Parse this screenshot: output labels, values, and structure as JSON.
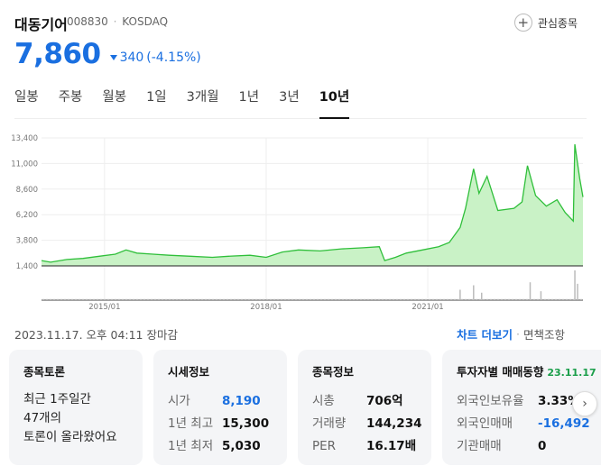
{
  "stock": {
    "name": "대동기어",
    "code": "008830",
    "market": "KOSDAQ",
    "fav_label": "관심종목",
    "price": "7,860",
    "change_value": "340",
    "change_pct": "(-4.15%)",
    "change_color": "#1a6fe0"
  },
  "tabs": [
    "일봉",
    "주봉",
    "월봉",
    "1일",
    "3개월",
    "1년",
    "3년",
    "10년"
  ],
  "active_tab": "10년",
  "timestamp": "2023.11.17. 오후 04:11 장마감",
  "links": {
    "chart_more": "차트 더보기",
    "exempt": "면책조항"
  },
  "chart_data": {
    "type": "area",
    "line_color": "#2fbf3a",
    "fill_color": "#c9f2c6",
    "y_ticks": [
      "13,400",
      "11,000",
      "8,600",
      "6,200",
      "3,800",
      "1,400"
    ],
    "y_tick_values": [
      13400,
      11000,
      8600,
      6200,
      3800,
      1400
    ],
    "ylim": [
      1400,
      13400
    ],
    "x_ticks": [
      "2015/01",
      "2018/01",
      "2021/01"
    ],
    "x_tick_years": [
      2015.0,
      2018.0,
      2021.0
    ],
    "xlim": [
      2013.83,
      2023.88
    ],
    "points": [
      [
        2013.83,
        1900
      ],
      [
        2014.0,
        1750
      ],
      [
        2014.3,
        2000
      ],
      [
        2014.6,
        2100
      ],
      [
        2014.9,
        2300
      ],
      [
        2015.2,
        2500
      ],
      [
        2015.4,
        2900
      ],
      [
        2015.6,
        2600
      ],
      [
        2015.9,
        2500
      ],
      [
        2016.2,
        2400
      ],
      [
        2016.6,
        2300
      ],
      [
        2017.0,
        2200
      ],
      [
        2017.3,
        2300
      ],
      [
        2017.7,
        2400
      ],
      [
        2018.0,
        2200
      ],
      [
        2018.3,
        2700
      ],
      [
        2018.6,
        2900
      ],
      [
        2019.0,
        2800
      ],
      [
        2019.4,
        3000
      ],
      [
        2019.8,
        3100
      ],
      [
        2020.1,
        3200
      ],
      [
        2020.2,
        1900
      ],
      [
        2020.4,
        2200
      ],
      [
        2020.6,
        2600
      ],
      [
        2020.9,
        2900
      ],
      [
        2021.2,
        3200
      ],
      [
        2021.4,
        3600
      ],
      [
        2021.6,
        5000
      ],
      [
        2021.7,
        6800
      ],
      [
        2021.85,
        10500
      ],
      [
        2021.95,
        8200
      ],
      [
        2022.1,
        9800
      ],
      [
        2022.3,
        6600
      ],
      [
        2022.6,
        6800
      ],
      [
        2022.75,
        7400
      ],
      [
        2022.85,
        10800
      ],
      [
        2023.0,
        8000
      ],
      [
        2023.2,
        7000
      ],
      [
        2023.4,
        7600
      ],
      [
        2023.55,
        6400
      ],
      [
        2023.7,
        5600
      ],
      [
        2023.73,
        12800
      ],
      [
        2023.82,
        9600
      ],
      [
        2023.88,
        7860
      ]
    ],
    "volume_spikes": [
      [
        2021.6,
        0.35
      ],
      [
        2021.85,
        0.5
      ],
      [
        2022.0,
        0.25
      ],
      [
        2022.9,
        0.6
      ],
      [
        2023.1,
        0.3
      ],
      [
        2023.73,
        1.0
      ],
      [
        2023.78,
        0.55
      ]
    ]
  },
  "cards": {
    "discussion": {
      "title": "종목토론",
      "lines": [
        "최근 1주일간",
        "47개의",
        "토론이 올라왔어요"
      ]
    },
    "market_info": {
      "title": "시세정보",
      "rows": [
        {
          "label": "시가",
          "value": "8,190",
          "color": "blue"
        },
        {
          "label": "1년 최고",
          "value": "15,300",
          "color": ""
        },
        {
          "label": "1년 최저",
          "value": "5,030",
          "color": ""
        }
      ]
    },
    "stock_info": {
      "title": "종목정보",
      "rows": [
        {
          "label": "시총",
          "value": "706억"
        },
        {
          "label": "거래량",
          "value": "144,234"
        },
        {
          "label": "PER",
          "value": "16.17배"
        }
      ]
    },
    "investor": {
      "title": "투자자별 매매동향",
      "date": "23.11.17",
      "rows": [
        {
          "label": "외국인보유율",
          "value": "3.33%",
          "color": ""
        },
        {
          "label": "외국인매매",
          "value": "-16,492",
          "color": "blue"
        },
        {
          "label": "기관매매",
          "value": "0",
          "color": ""
        }
      ]
    }
  }
}
